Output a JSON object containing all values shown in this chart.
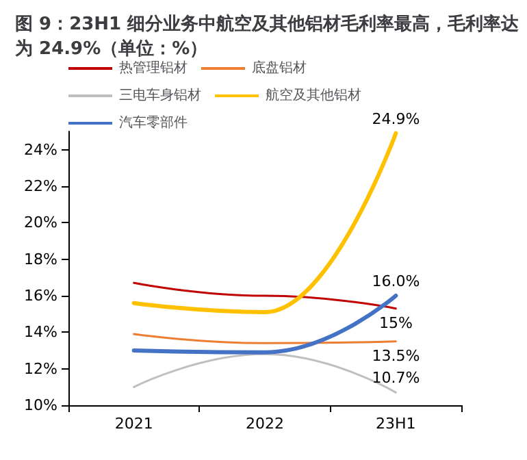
{
  "chart_data": {
    "type": "line",
    "title": "图 9：23H1 细分业务中航空及其他铝材毛利率最高，毛利率达为 24.9%（单位：%）",
    "categories": [
      "2021",
      "2022",
      "23H1"
    ],
    "series": [
      {
        "name": "热管理铝材",
        "color": "#c00000",
        "values": [
          16.7,
          16.0,
          15.3
        ],
        "value_labels": [
          null,
          null,
          "15%"
        ]
      },
      {
        "name": "底盘铝材",
        "color": "#ed7d31",
        "values": [
          13.9,
          13.4,
          13.5
        ],
        "value_labels": [
          null,
          null,
          "13.5%"
        ]
      },
      {
        "name": "三电车身铝材",
        "color": "#bfbfbf",
        "values": [
          11.0,
          12.8,
          10.7
        ],
        "value_labels": [
          null,
          null,
          "10.7%"
        ]
      },
      {
        "name": "航空及其他铝材",
        "color": "#ffc000",
        "values": [
          15.6,
          15.1,
          24.9
        ],
        "value_labels": [
          null,
          null,
          "24.9%"
        ]
      },
      {
        "name": "汽车零部件",
        "color": "#4472c4",
        "values": [
          13.0,
          12.9,
          16.0
        ],
        "value_labels": [
          null,
          null,
          "16.0%"
        ]
      }
    ],
    "ylim": [
      10,
      25
    ],
    "yticks": [
      {
        "value": 10,
        "label": "10%"
      },
      {
        "value": 12,
        "label": "12%"
      },
      {
        "value": 14,
        "label": "14%"
      },
      {
        "value": 16,
        "label": "16%"
      },
      {
        "value": 18,
        "label": "18%"
      },
      {
        "value": 20,
        "label": "20%"
      },
      {
        "value": 22,
        "label": "22%"
      },
      {
        "value": 24,
        "label": "24%"
      }
    ],
    "grid": false,
    "legend": "top",
    "marker": "none",
    "line_style": "solid"
  }
}
